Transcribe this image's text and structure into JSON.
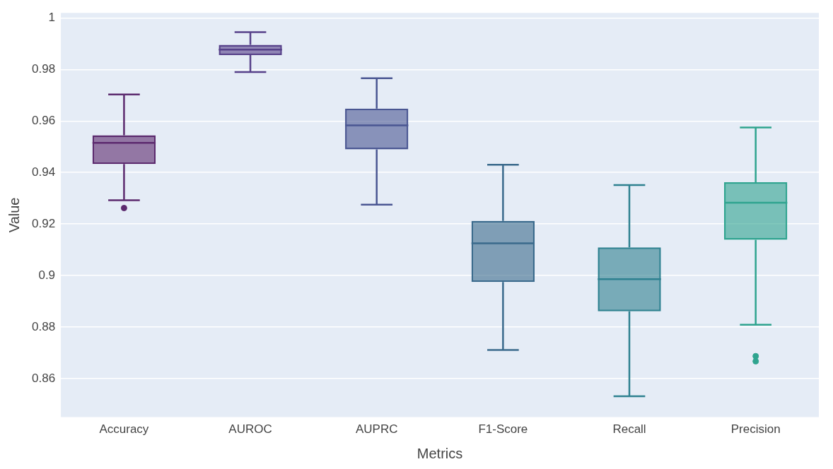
{
  "chart_data": {
    "type": "box",
    "xlabel": "Metrics",
    "ylabel": "Value",
    "categories": [
      "Accuracy",
      "AUROC",
      "AUPRC",
      "F1-Score",
      "Recall",
      "Precision"
    ],
    "colors": [
      "#5c2a6e",
      "#57418a",
      "#4a5692",
      "#3a6a8c",
      "#2e8190",
      "#2fa48f"
    ],
    "boxes": [
      {
        "low": 0.9292,
        "q1": 0.9433,
        "median": 0.9515,
        "q3": 0.9545,
        "high": 0.9703,
        "outliers": [
          0.9262
        ]
      },
      {
        "low": 0.979,
        "q1": 0.9856,
        "median": 0.9877,
        "q3": 0.9896,
        "high": 0.9945
      },
      {
        "low": 0.9275,
        "q1": 0.949,
        "median": 0.9583,
        "q3": 0.9648,
        "high": 0.9766
      },
      {
        "low": 0.8711,
        "q1": 0.8975,
        "median": 0.9125,
        "q3": 0.9212,
        "high": 0.943
      },
      {
        "low": 0.8531,
        "q1": 0.8861,
        "median": 0.8986,
        "q3": 0.9109,
        "high": 0.9351
      },
      {
        "low": 0.8809,
        "q1": 0.9139,
        "median": 0.9283,
        "q3": 0.9362,
        "high": 0.9575,
        "outliers": [
          0.8687,
          0.8667
        ]
      }
    ],
    "ylim": [
      0.845,
      1.002
    ],
    "yticks": [
      0.86,
      0.88,
      0.9,
      0.92,
      0.94,
      0.96,
      0.98,
      1
    ],
    "grid": "y",
    "legend": false
  }
}
